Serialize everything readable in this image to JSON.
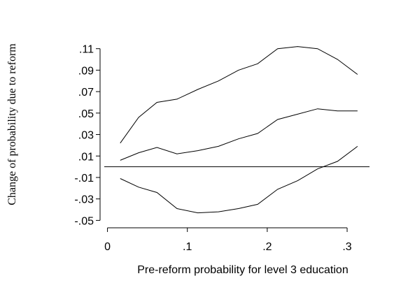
{
  "chart_data": {
    "type": "line",
    "xlabel": "Pre-reform probability for level 3 education",
    "ylabel": "Change of probability due to reform",
    "xlim": [
      -0.004,
      0.321
    ],
    "ylim": [
      -0.053,
      0.115
    ],
    "x_ticks": [
      {
        "value": 0,
        "label": "0"
      },
      {
        "value": 0.1,
        "label": ".1"
      },
      {
        "value": 0.2,
        "label": ".2"
      },
      {
        "value": 0.3,
        "label": ".3"
      }
    ],
    "y_ticks": [
      {
        "value": 0.11,
        "label": ".11"
      },
      {
        "value": 0.09,
        "label": ".09"
      },
      {
        "value": 0.07,
        "label": ".07"
      },
      {
        "value": 0.05,
        "label": ".05"
      },
      {
        "value": 0.03,
        "label": ".03"
      },
      {
        "value": 0.01,
        "label": ".01"
      },
      {
        "value": -0.01,
        "label": "-.01"
      },
      {
        "value": -0.03,
        "label": "-.03"
      },
      {
        "value": -0.05,
        "label": "-.05"
      }
    ],
    "reference_line": {
      "y": 0
    },
    "x": [
      0.016,
      0.039,
      0.062,
      0.087,
      0.113,
      0.139,
      0.164,
      0.188,
      0.213,
      0.238,
      0.263,
      0.288,
      0.313
    ],
    "series": [
      {
        "values": [
          0.022,
          0.046,
          0.06,
          0.063,
          0.072,
          0.08,
          0.09,
          0.096,
          0.11,
          0.112,
          0.11,
          0.1,
          0.086
        ]
      },
      {
        "values": [
          0.006,
          0.013,
          0.018,
          0.012,
          0.015,
          0.019,
          0.026,
          0.031,
          0.044,
          0.049,
          0.054,
          0.052,
          0.052
        ]
      },
      {
        "values": [
          -0.011,
          -0.019,
          -0.024,
          -0.039,
          -0.043,
          -0.042,
          -0.039,
          -0.035,
          -0.021,
          -0.013,
          -0.002,
          0.005,
          0.019
        ]
      }
    ]
  }
}
